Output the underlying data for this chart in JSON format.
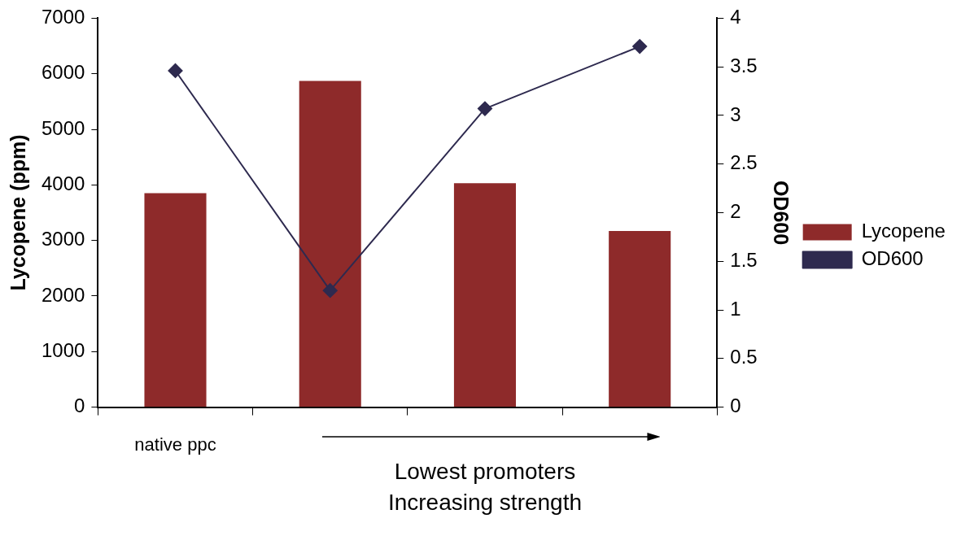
{
  "chart_data": {
    "type": "bar",
    "categories": [
      "native ppc",
      null,
      null,
      null
    ],
    "series": [
      {
        "name": "Lycopene",
        "color": "#8e2a2a",
        "values": [
          3850,
          5870,
          4030,
          3170
        ]
      },
      {
        "name": "OD600",
        "type": "line",
        "axis": "y2",
        "color": "#2e2a4f",
        "values": [
          3.46,
          1.2,
          3.07,
          3.71
        ]
      }
    ],
    "ylabel": "Lycopene (ppm)",
    "y2label": "OD600",
    "ylim": [
      0,
      7000
    ],
    "yticks": [
      0,
      1000,
      2000,
      3000,
      4000,
      5000,
      6000,
      7000
    ],
    "y2lim": [
      0,
      4
    ],
    "y2ticks": [
      0,
      0.5,
      1,
      1.5,
      2,
      2.5,
      3,
      3.5,
      4
    ],
    "annotations": [
      "Lowest promoters",
      "Increasing strength"
    ],
    "marker": "diamond",
    "line_style": "solid",
    "grid": false,
    "legend": "right"
  }
}
